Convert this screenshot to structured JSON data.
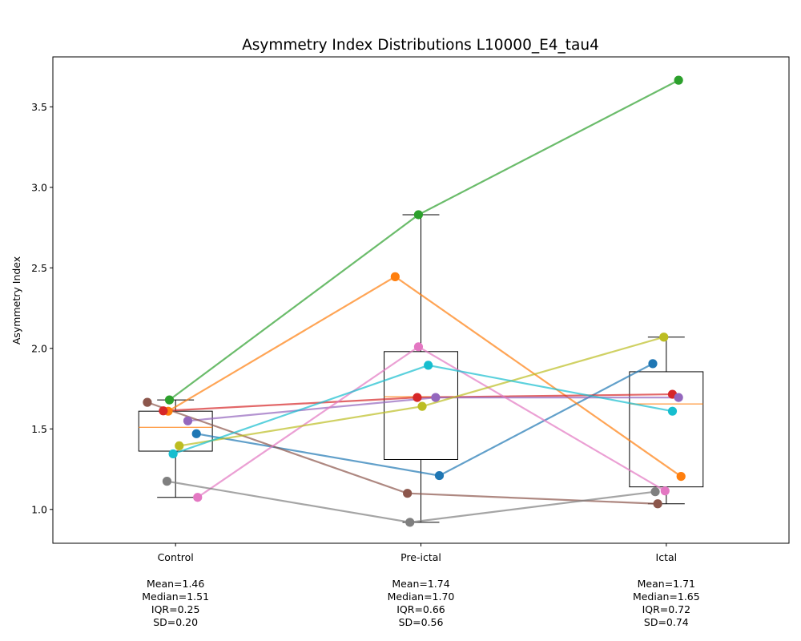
{
  "chart_data": {
    "type": "box-with-paired-points",
    "title": "Asymmetry Index Distributions L10000_E4_tau4",
    "xlabel": "",
    "ylabel": "Asymmetry Index",
    "ylim": [
      0.79,
      3.81
    ],
    "yticks": [
      "1.0",
      "1.5",
      "2.0",
      "2.5",
      "3.0",
      "3.5"
    ],
    "grid": false,
    "categories": [
      "Control",
      "Pre-ictal",
      "Ictal"
    ],
    "stats": [
      [
        "Mean=1.46",
        "Median=1.51",
        "IQR=0.25",
        "SD=0.20"
      ],
      [
        "Mean=1.74",
        "Median=1.70",
        "IQR=0.66",
        "SD=0.56"
      ],
      [
        "Mean=1.71",
        "Median=1.65",
        "IQR=0.72",
        "SD=0.74"
      ]
    ],
    "boxes": [
      {
        "whisker_low": 1.075,
        "q1": 1.362,
        "median": 1.51,
        "q3": 1.61,
        "whisker_high": 1.68
      },
      {
        "whisker_low": 0.92,
        "q1": 1.31,
        "median": 1.7,
        "q3": 1.98,
        "whisker_high": 2.83
      },
      {
        "whisker_low": 1.035,
        "q1": 1.14,
        "median": 1.655,
        "q3": 1.855,
        "whisker_high": 2.07
      }
    ],
    "series": [
      {
        "color": "#1f77b4",
        "values": [
          1.47,
          1.21,
          1.905
        ],
        "jitter": [
          0.085,
          0.075,
          -0.055
        ]
      },
      {
        "color": "#ff7f0e",
        "values": [
          1.61,
          2.445,
          1.205
        ],
        "jitter": [
          -0.03,
          -0.105,
          0.06
        ]
      },
      {
        "color": "#2ca02c",
        "values": [
          1.68,
          2.83,
          3.665
        ],
        "jitter": [
          -0.025,
          -0.01,
          0.05
        ]
      },
      {
        "color": "#d62728",
        "values": [
          1.612,
          1.695,
          1.715
        ],
        "jitter": [
          -0.05,
          -0.015,
          0.025
        ]
      },
      {
        "color": "#9467bd",
        "values": [
          1.55,
          1.695,
          1.695
        ],
        "jitter": [
          0.05,
          0.06,
          0.05
        ]
      },
      {
        "color": "#8c564b",
        "values": [
          1.665,
          1.1,
          1.035
        ],
        "jitter": [
          -0.115,
          -0.055,
          -0.035
        ]
      },
      {
        "color": "#e377c2",
        "values": [
          1.075,
          2.01,
          1.115
        ],
        "jitter": [
          0.09,
          -0.01,
          -0.005
        ]
      },
      {
        "color": "#7f7f7f",
        "values": [
          1.175,
          0.92,
          1.11
        ],
        "jitter": [
          -0.035,
          -0.045,
          -0.045
        ]
      },
      {
        "color": "#bcbd22",
        "values": [
          1.395,
          1.64,
          2.07
        ],
        "jitter": [
          0.015,
          0.005,
          -0.01
        ]
      },
      {
        "color": "#17becf",
        "values": [
          1.345,
          1.895,
          1.61
        ],
        "jitter": [
          -0.01,
          0.03,
          0.025
        ]
      }
    ]
  }
}
